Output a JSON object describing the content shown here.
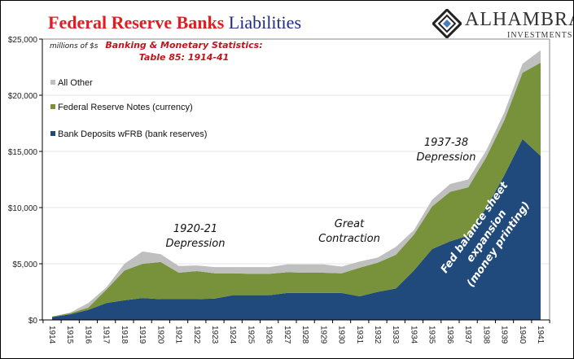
{
  "title": {
    "part1": "Federal Reserve Banks",
    "part2": "Liabilities"
  },
  "logo": {
    "name": "ALHAMBRA",
    "sub": "INVESTMENTS"
  },
  "chart_data": {
    "type": "area",
    "stacked": true,
    "title": "Federal Reserve Banks Liabilities",
    "unit_label": "millions of $s",
    "source_line1": "Banking & Monetary Statistics:",
    "source_line2": "Table 85: 1914-41",
    "categories": [
      "1914",
      "1915",
      "1916",
      "1917",
      "1918",
      "1919",
      "1920",
      "1921",
      "1922",
      "1923",
      "1924",
      "1925",
      "1926",
      "1927",
      "1928",
      "1929",
      "1930",
      "1931",
      "1932",
      "1933",
      "1934",
      "1935",
      "1936",
      "1937",
      "1938",
      "1939",
      "1940",
      "1941"
    ],
    "series": [
      {
        "name": "Bank Deposits wFRB (bank reserves)",
        "color": "#20497c",
        "values": [
          250,
          500,
          900,
          1500,
          1750,
          1950,
          1850,
          1850,
          1850,
          1900,
          2200,
          2200,
          2200,
          2400,
          2400,
          2400,
          2400,
          2100,
          2500,
          2800,
          4400,
          6300,
          7000,
          7500,
          10000,
          12900,
          16100,
          14600
        ]
      },
      {
        "name": "Federal Reserve Notes (currency)",
        "color": "#77923b",
        "values": [
          50,
          100,
          200,
          1200,
          2650,
          3050,
          3300,
          2350,
          2500,
          2250,
          1950,
          1900,
          1900,
          1850,
          1800,
          1800,
          1750,
          2550,
          2600,
          3000,
          3200,
          3800,
          4400,
          4300,
          4500,
          4900,
          5900,
          8300
        ]
      },
      {
        "name": "All Other",
        "color": "#bfbfbf",
        "values": [
          0,
          50,
          400,
          200,
          600,
          1100,
          700,
          600,
          500,
          550,
          550,
          600,
          600,
          700,
          750,
          750,
          600,
          550,
          450,
          700,
          400,
          600,
          700,
          700,
          600,
          700,
          800,
          1100
        ]
      }
    ],
    "ylim": [
      0,
      25000
    ],
    "yticks": [
      "$0",
      "$5,000",
      "$10,000",
      "$15,000",
      "$20,000",
      "$25,000"
    ],
    "ytick_values": [
      0,
      5000,
      10000,
      15000,
      20000,
      25000
    ],
    "grid": true,
    "legend": "top-left",
    "annotations": [
      {
        "lines": [
          "1920-21",
          "Depression"
        ]
      },
      {
        "lines": [
          "Great",
          "Contraction"
        ]
      },
      {
        "lines": [
          "1937-38",
          "Depression"
        ]
      },
      {
        "lines": [
          "Fed balance sheet",
          "expansion",
          "(money printing)"
        ]
      }
    ]
  }
}
